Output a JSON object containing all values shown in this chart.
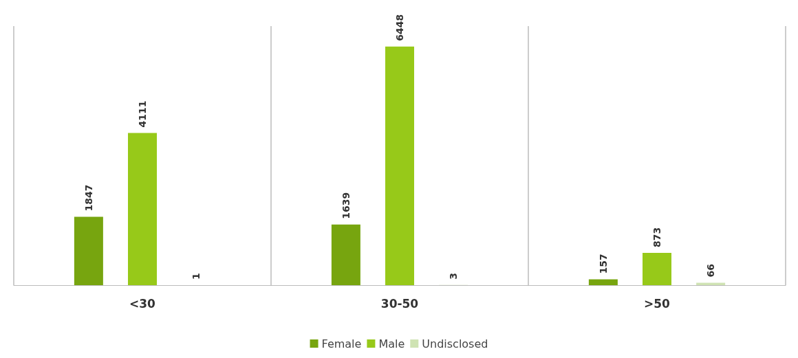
{
  "chart_data": {
    "type": "bar",
    "categories": [
      "<30",
      "30-50",
      ">50"
    ],
    "series": [
      {
        "name": "Female",
        "color": "#77a50f",
        "values": [
          1847,
          1639,
          157
        ]
      },
      {
        "name": "Male",
        "color": "#97c919",
        "values": [
          4111,
          6448,
          873
        ]
      },
      {
        "name": "Undisclosed",
        "color": "#cfe3b3",
        "values": [
          1,
          3,
          66
        ]
      }
    ],
    "data_labels": true,
    "grid": "x",
    "legend": "bottom"
  }
}
